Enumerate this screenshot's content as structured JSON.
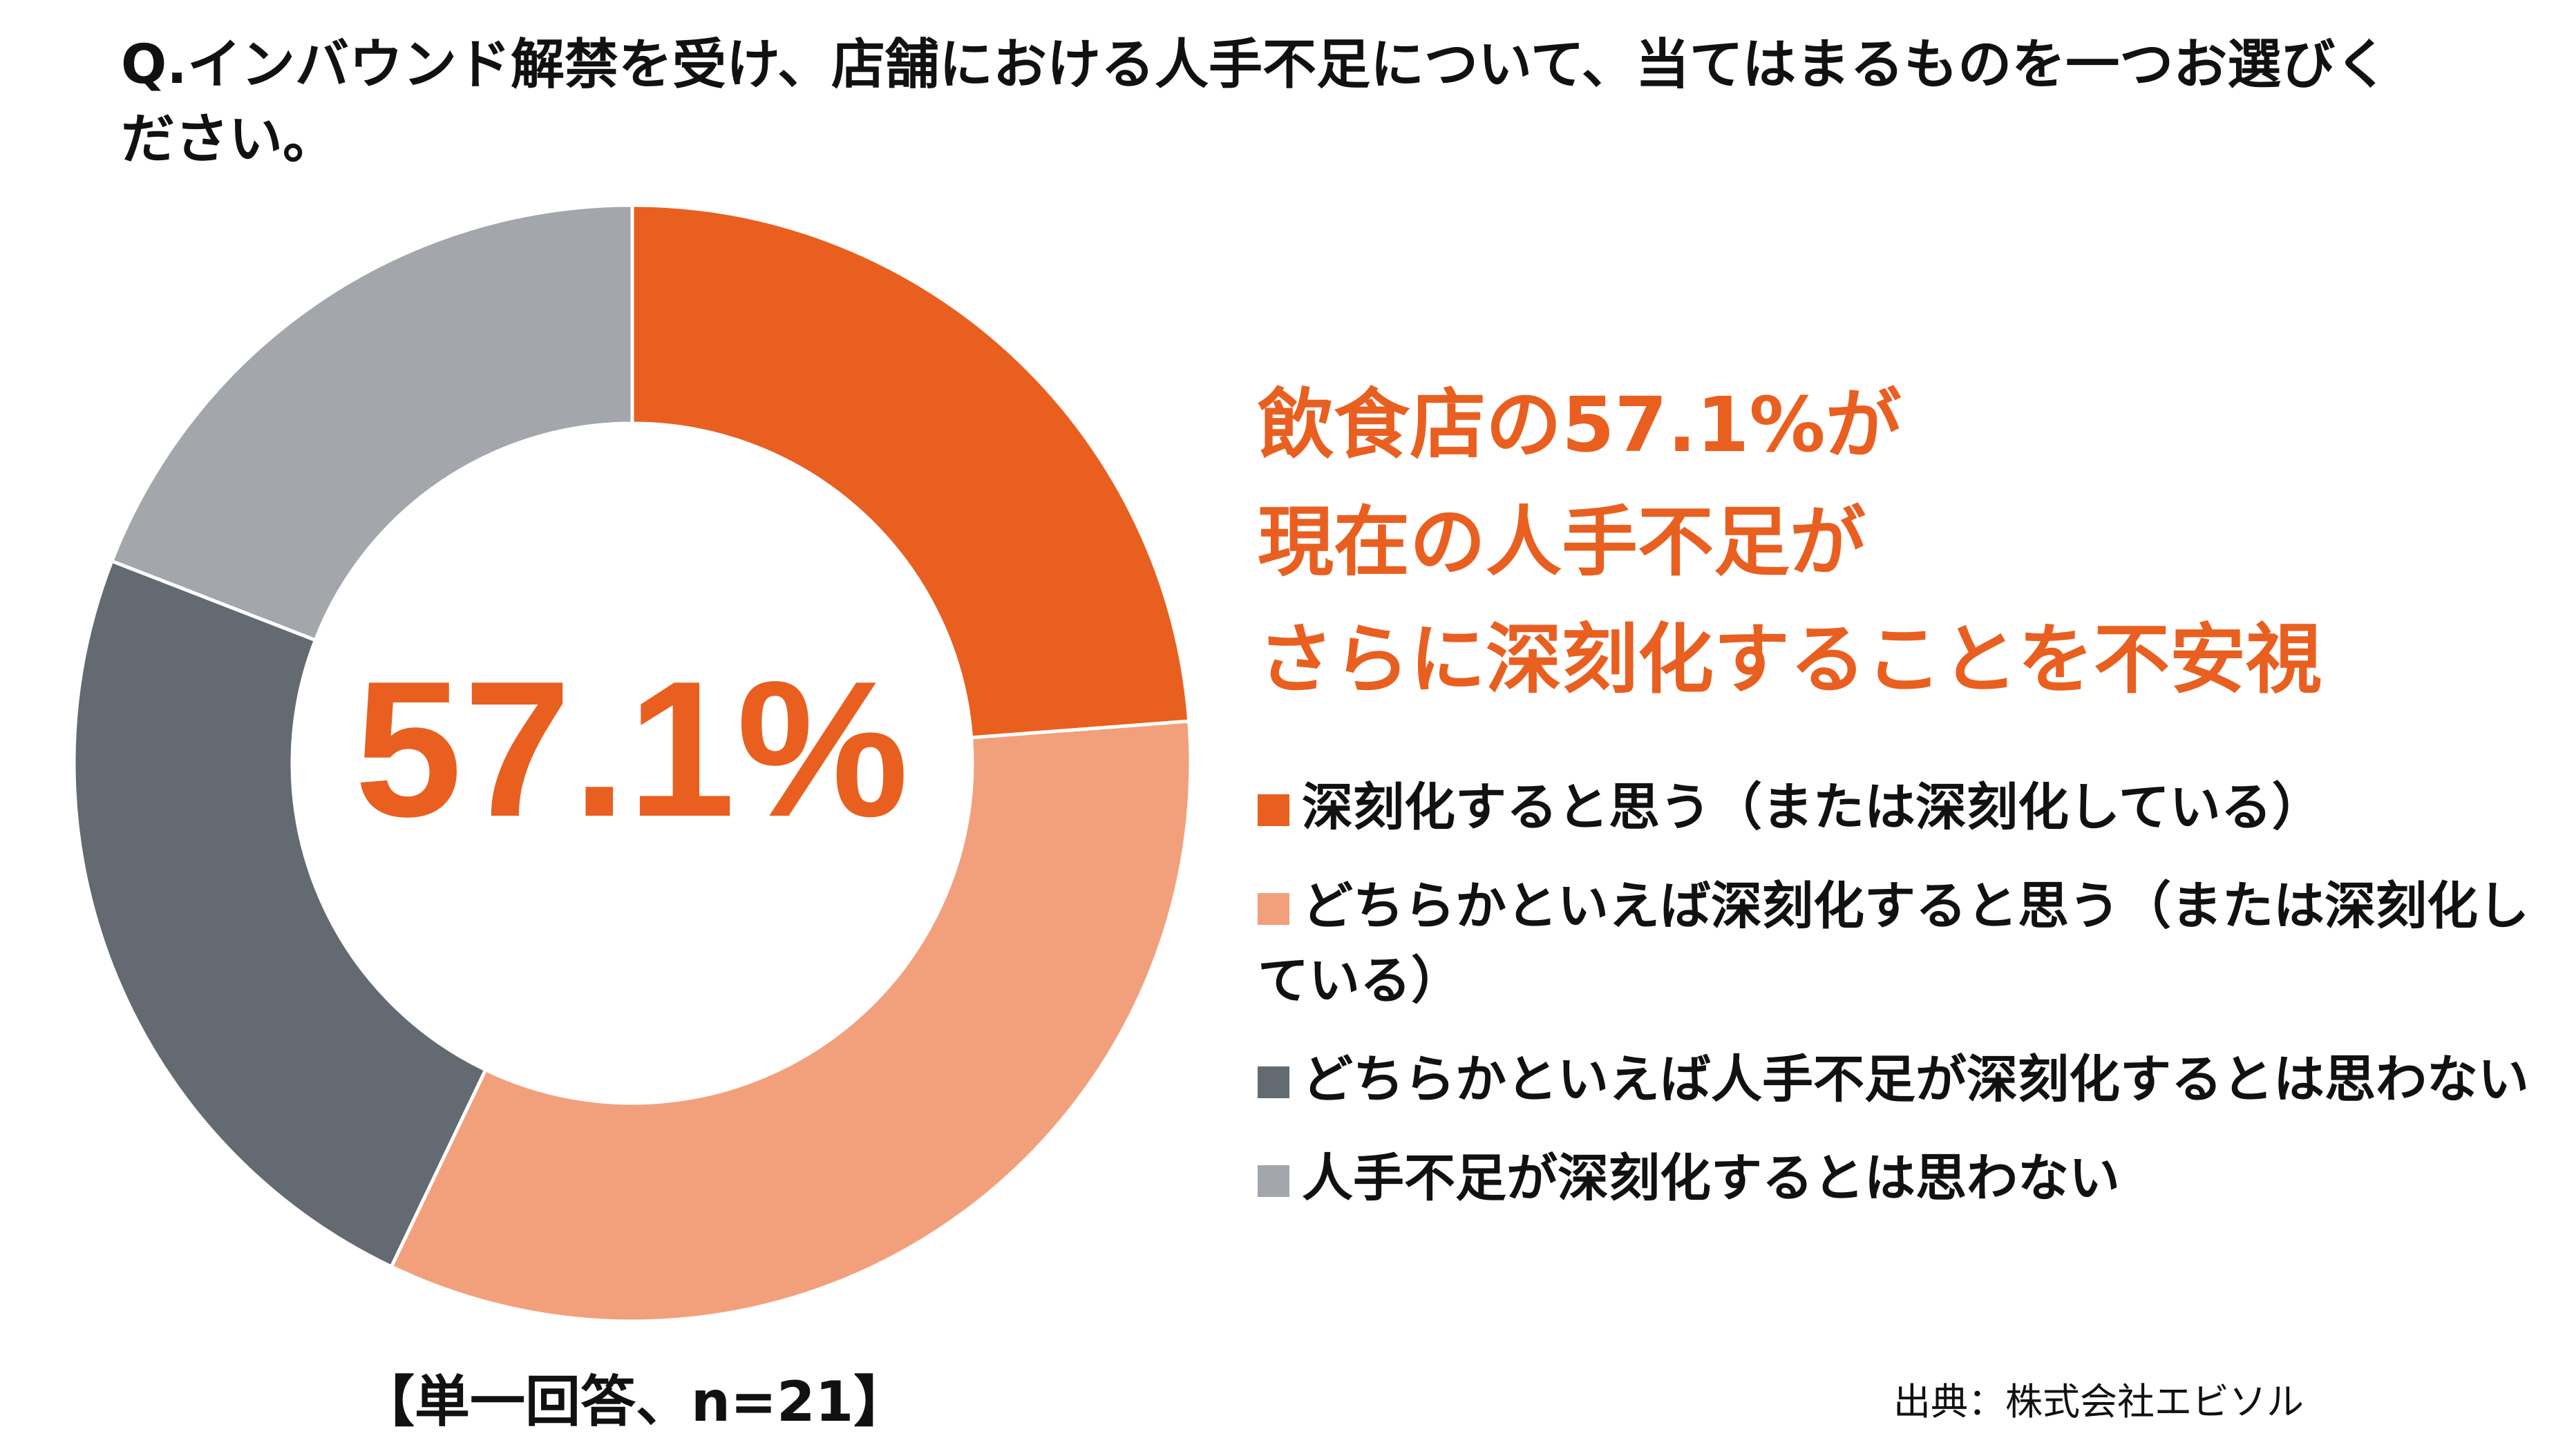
{
  "question": "Q.インバウンド解禁を受け、店舗における人手不足について、当てはまるものを一つお選びください。",
  "headline": {
    "line1": "飲食店の57.1%が",
    "line2": "現在の人手不足が",
    "line3": "さらに深刻化することを不安視"
  },
  "center_value": "57.1%",
  "sample_note": "【単一回答、n=21】",
  "source": "出典：株式会社エビソル",
  "chart_data": {
    "type": "pie",
    "style": "donut",
    "unit": "%",
    "categories": [
      "深刻化すると思う（または深刻化している）",
      "どちらかといえば深刻化すると思う（または深刻化している）",
      "どちらかといえば人手不足が深刻化するとは思わない",
      "人手不足が深刻化するとは思わない"
    ],
    "values": [
      23.8,
      33.3,
      23.8,
      19.1
    ],
    "colors": [
      "#e95f20",
      "#f2a07c",
      "#636a72",
      "#a3a7ab"
    ],
    "legend_position": "right"
  }
}
